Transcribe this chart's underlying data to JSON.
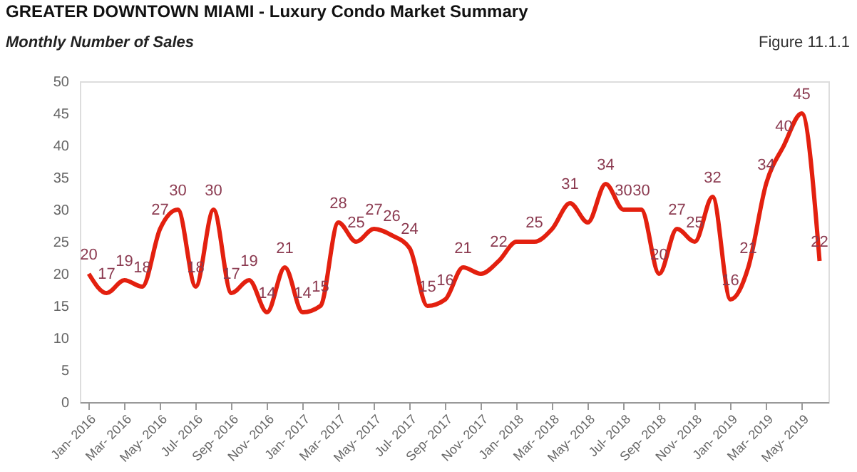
{
  "chart_data": {
    "type": "line",
    "title": "GREATER DOWNTOWN MIAMI - Luxury Condo Market Summary",
    "subtitle": "Monthly Number of Sales",
    "annotations": [
      "Figure 11.1.1"
    ],
    "categories": [
      "Jan- 2016",
      null,
      "Mar- 2016",
      null,
      "May- 2016",
      null,
      "Jul- 2016",
      null,
      "Sep- 2016",
      null,
      "Nov- 2016",
      null,
      "Jan- 2017",
      null,
      "Mar- 2017",
      null,
      "May- 2017",
      null,
      "Jul- 2017",
      null,
      "Sep- 2017",
      null,
      "Nov- 2017",
      null,
      "Jan- 2018",
      null,
      "Mar- 2018",
      null,
      "May- 2018",
      null,
      "Jul- 2018",
      null,
      "Sep- 2018",
      null,
      "Nov- 2018",
      null,
      "Jan- 2019",
      null,
      "Mar- 2019",
      null,
      "May- 2019",
      null
    ],
    "series": [
      {
        "color": "#e3200f",
        "values": [
          20,
          17,
          19,
          18,
          27,
          30,
          18,
          30,
          17,
          19,
          14,
          21,
          14,
          15,
          28,
          25,
          27,
          26,
          24,
          15,
          16,
          21,
          20,
          22,
          25,
          25,
          27,
          31,
          28,
          34,
          30,
          30,
          20,
          27,
          25,
          32,
          16,
          21,
          34,
          40,
          45,
          22
        ],
        "value_labels": [
          "20",
          "17",
          "19",
          "18",
          "27",
          "30",
          "18",
          "30",
          "17",
          "19",
          "14",
          "21",
          "14",
          "15",
          "28",
          "25",
          "27",
          "26",
          "24",
          "15",
          "16",
          "21",
          null,
          "22",
          null,
          "25",
          null,
          "31",
          null,
          "34",
          "30",
          "30",
          "20",
          "27",
          "25",
          "32",
          "16",
          "21",
          "34",
          "40",
          "45",
          "22"
        ]
      }
    ],
    "ylim": [
      0,
      50
    ],
    "yticks": [
      0,
      5,
      10,
      15,
      20,
      25,
      30,
      35,
      40,
      45,
      50
    ],
    "grid": false,
    "marker": "none",
    "line_style": "solid"
  }
}
